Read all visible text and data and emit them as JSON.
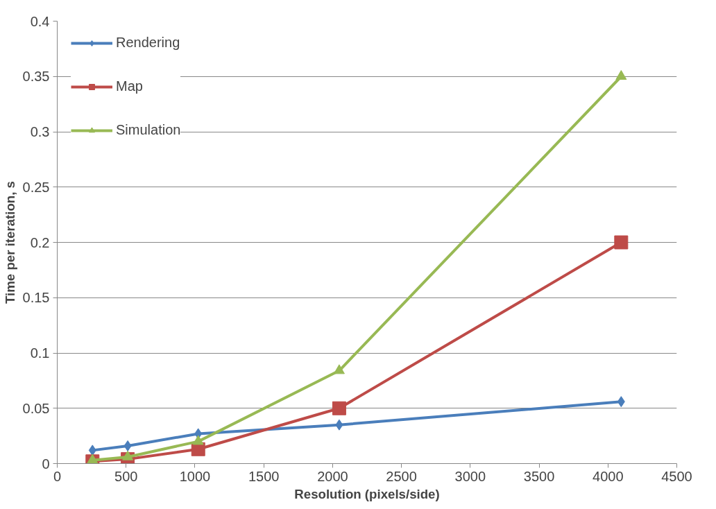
{
  "chart_data": {
    "type": "line",
    "xlabel": "Resolution (pixels/side)",
    "ylabel": "Time per iteration, s",
    "x": [
      256,
      512,
      1024,
      2048,
      4096
    ],
    "series": [
      {
        "name": "Rendering",
        "color": "#4a7ebb",
        "marker": "diamond",
        "values": [
          0.012,
          0.016,
          0.027,
          0.035,
          0.056
        ]
      },
      {
        "name": "Map",
        "color": "#be4b48",
        "marker": "square",
        "values": [
          0.002,
          0.004,
          0.013,
          0.05,
          0.2
        ]
      },
      {
        "name": "Simulation",
        "color": "#98b954",
        "marker": "triangle",
        "values": [
          0.003,
          0.006,
          0.02,
          0.084,
          0.35
        ]
      }
    ],
    "xlim": [
      0,
      4500
    ],
    "xticks": [
      0,
      500,
      1000,
      1500,
      2000,
      2500,
      3000,
      3500,
      4000,
      4500
    ],
    "ylim": [
      0,
      0.4
    ],
    "yticks": [
      0,
      0.05,
      0.1,
      0.15,
      0.2,
      0.25,
      0.3,
      0.35,
      0.4
    ],
    "grid": "y",
    "legend": "top left",
    "line_style": "solid"
  }
}
